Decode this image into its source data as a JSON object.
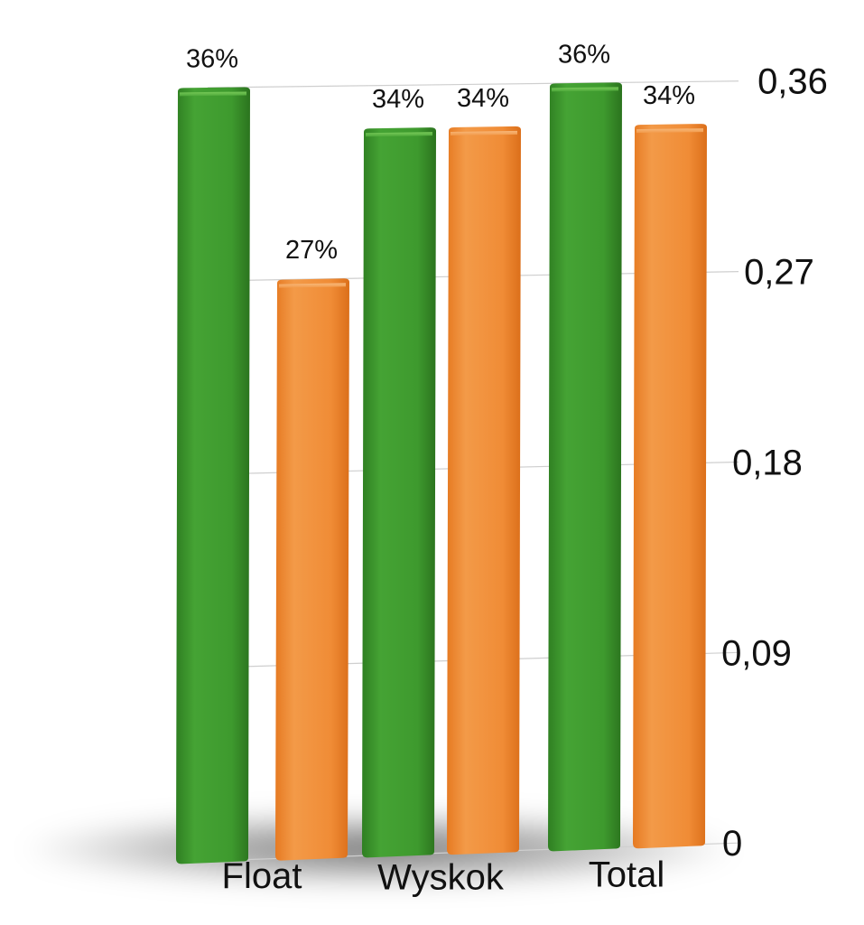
{
  "chart_data": {
    "type": "bar",
    "categories": [
      "Float",
      "Wyskok",
      "Total"
    ],
    "series": [
      {
        "values": [
          0.36,
          0.34,
          0.36
        ],
        "labels": [
          "36%",
          "34%",
          "36%"
        ],
        "color": "#3f9a2f"
      },
      {
        "values": [
          0.27,
          0.34,
          0.34
        ],
        "labels": [
          "27%",
          "34%",
          "34%"
        ],
        "color": "#f08a33"
      }
    ],
    "y_ticks": [
      {
        "value": 0.36,
        "label": "0,36"
      },
      {
        "value": 0.27,
        "label": "0,27"
      },
      {
        "value": 0.18,
        "label": "0,18"
      },
      {
        "value": 0.09,
        "label": "0,09"
      },
      {
        "value": 0,
        "label": "0"
      }
    ],
    "ylim": [
      0,
      0.36
    ],
    "yaxis_side": "right",
    "grid": true,
    "legend": "none",
    "style": "3d-perspective"
  }
}
